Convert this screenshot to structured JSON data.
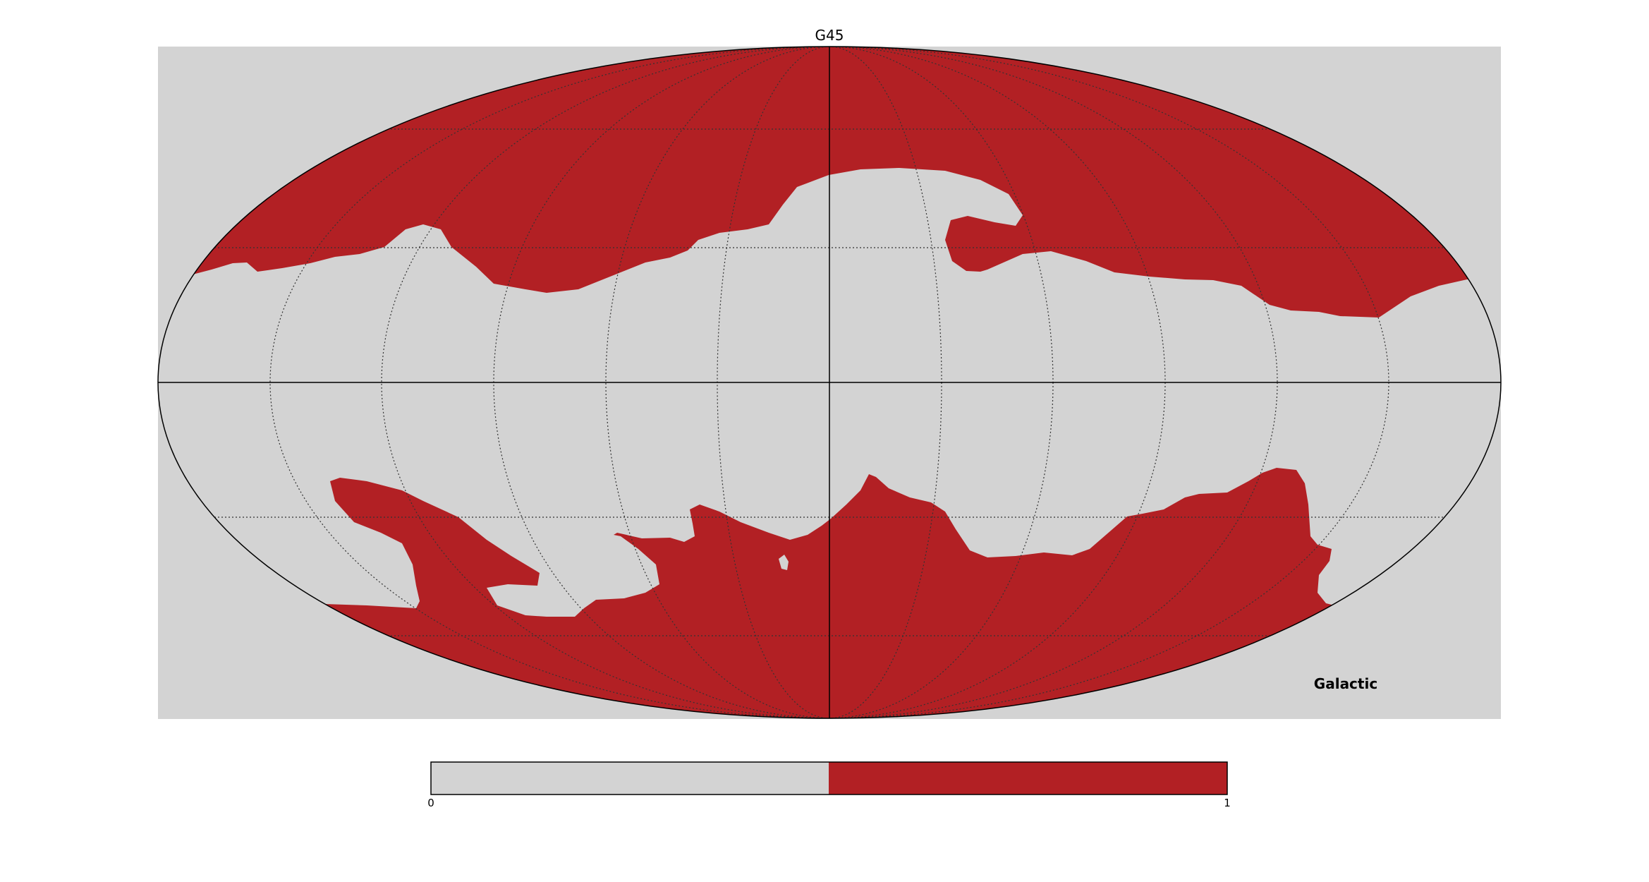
{
  "map": {
    "title": "G45",
    "coordinate_system": "Galactic",
    "projection": "mollweide",
    "graticule": true,
    "background_color": "#d3d3d3",
    "mask_color": "#b22024",
    "unmasked_color": "#d3d3d3",
    "line_color": "#000000"
  },
  "colorbar": {
    "min_label": "0",
    "max_label": "1",
    "colors": [
      "#d3d3d3",
      "#b22024"
    ]
  }
}
